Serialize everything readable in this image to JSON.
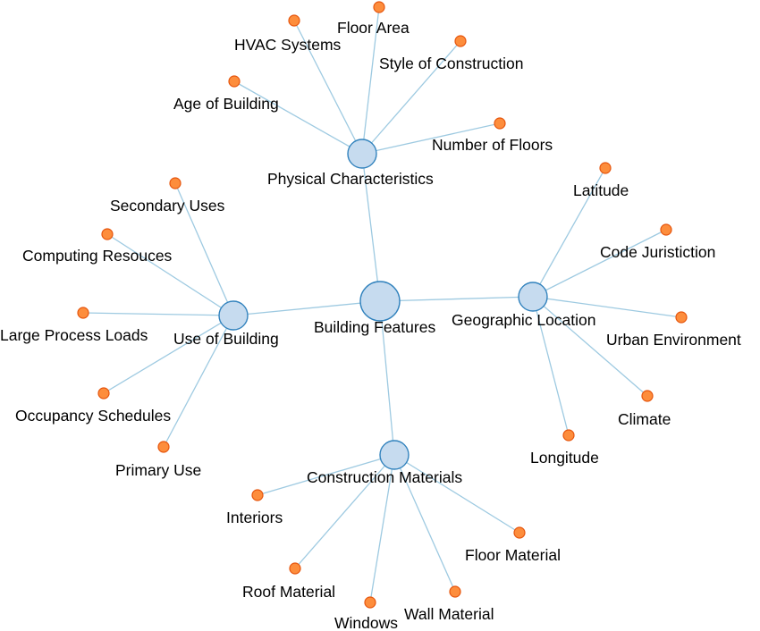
{
  "diagram": {
    "colors": {
      "link": "#9ecae1",
      "hub_fill": "#c6dbef",
      "hub_stroke": "#3182bd",
      "leaf_fill": "#fd8d3c",
      "leaf_stroke": "#e6550d"
    },
    "root": "Building Features",
    "groups": [
      {
        "name": "Physical Characteristics",
        "children": [
          "HVAC Systems",
          "Floor Area",
          "Style of Construction",
          "Age of Building",
          "Number of Floors"
        ]
      },
      {
        "name": "Use of Building",
        "children": [
          "Secondary Uses",
          "Computing Resouces",
          "Large Process Loads",
          "Occupancy Schedules",
          "Primary Use"
        ]
      },
      {
        "name": "Geographic Location",
        "children": [
          "Latitude",
          "Code Juristiction",
          "Urban Environment",
          "Climate",
          "Longitude"
        ]
      },
      {
        "name": "Construction Materials",
        "children": [
          "Interiors",
          "Roof Material",
          "Windows",
          "Wall Material",
          "Floor Material"
        ]
      }
    ]
  }
}
